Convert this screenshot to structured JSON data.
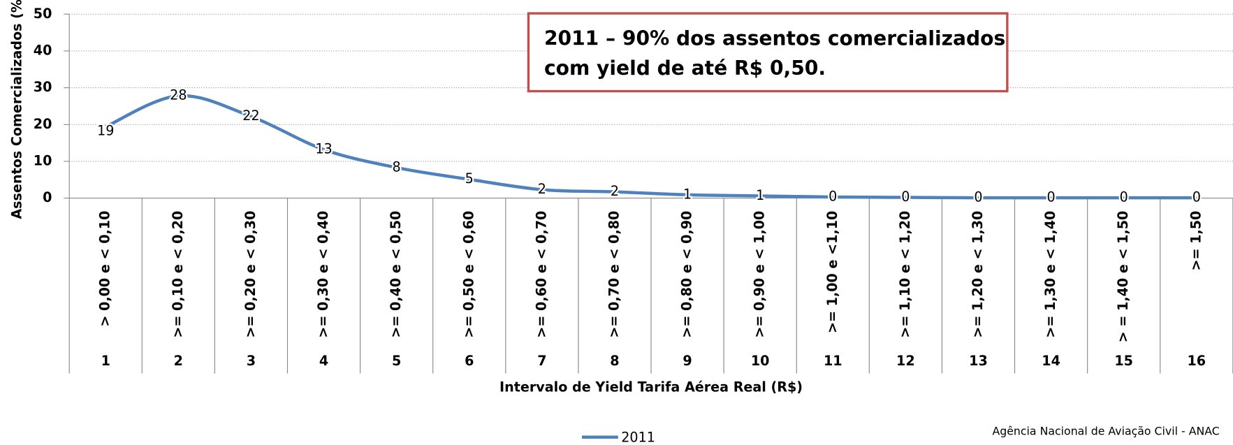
{
  "chart_data": {
    "type": "line",
    "annotation": [
      "2011 – 90% dos assentos comercializados",
      "com yield de até  R$ 0,50."
    ],
    "xlabel": "Intervalo de Yield Tarifa Aérea Real (R$)",
    "ylabel": "Assentos Comercializados (%)",
    "source": "Agência Nacional de Aviação Civil - ANAC",
    "categories": [
      "1",
      "2",
      "3",
      "4",
      "5",
      "6",
      "7",
      "8",
      "9",
      "10",
      "11",
      "12",
      "13",
      "14",
      "15",
      "16"
    ],
    "interval_labels": [
      "> 0,00 e < 0,10",
      ">= 0,10 e < 0,20",
      ">= 0,20 e < 0,30",
      ">= 0,30 e < 0,40",
      ">= 0,40 e < 0,50",
      ">= 0,50 e < 0,60",
      ">= 0,60 e < 0,70",
      ">= 0,70 e < 0,80",
      ">= 0,80 e < 0,90",
      ">= 0,90 e < 1,00",
      ">= 1,00 e <1,10",
      ">= 1,10 e < 1,20",
      ">= 1,20 e < 1,30",
      ">= 1,30 e < 1,40",
      "> = 1,40 e < 1,50",
      ">= 1,50"
    ],
    "series": [
      {
        "name": "2011",
        "color": "#4f81bd",
        "values": [
          19.4,
          27.8,
          22.2,
          13.2,
          8.3,
          5.1,
          2.3,
          1.7,
          0.9,
          0.6,
          0.3,
          0.2,
          0.1,
          0.1,
          0.1,
          0.1
        ],
        "value_labels": [
          "19",
          "28",
          "22",
          "13",
          "8",
          "5",
          "2",
          "2",
          "1",
          "1",
          "0",
          "0",
          "0",
          "0",
          "0",
          "0"
        ]
      }
    ],
    "ylim": [
      0,
      50
    ],
    "yticks": [
      0,
      10,
      20,
      30,
      40,
      50
    ],
    "grid": true
  }
}
